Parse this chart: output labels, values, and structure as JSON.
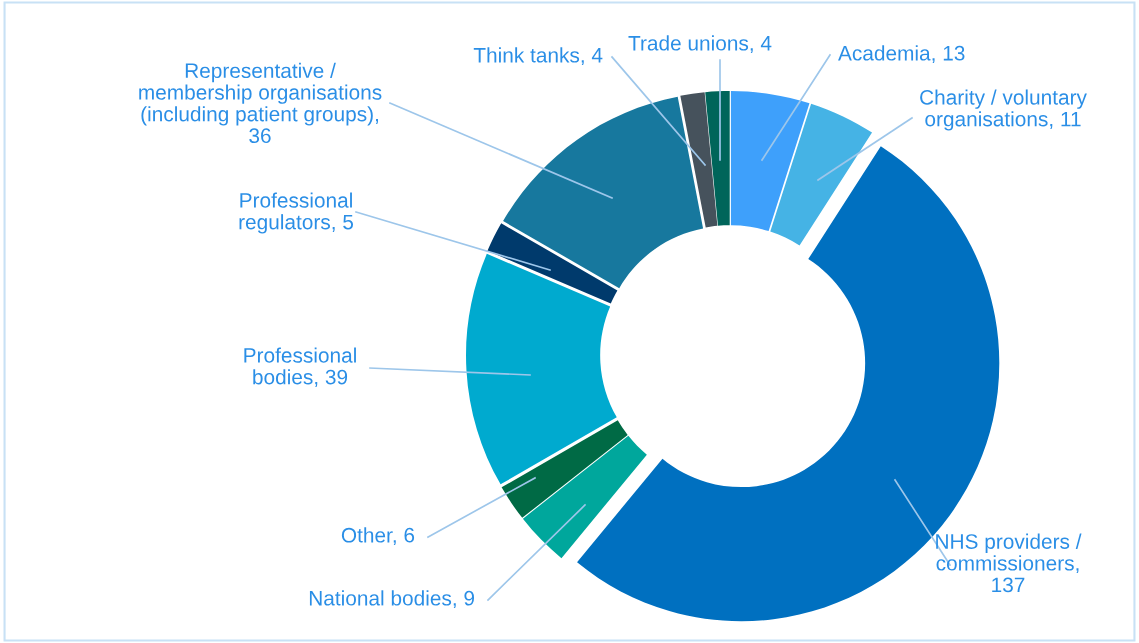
{
  "chart_data": {
    "type": "donut",
    "categories": [
      "Academia, 13",
      "Charity / voluntary\norganisations, 11",
      "NHS providers /\ncommissioners,\n137",
      "National bodies, 9",
      "Other, 6",
      "Professional\nbodies, 39",
      "Professional\nregulators, 5",
      "Representative /\nmembership organisations\n(including patient groups),\n36",
      "Think tanks, 4",
      "Trade unions, 4"
    ],
    "values": [
      13,
      11,
      137,
      9,
      6,
      39,
      5,
      36,
      4,
      4
    ],
    "colors": [
      "#3ea0fb",
      "#45b3e5",
      "#0070c0",
      "#00a79c",
      "#006a45",
      "#00aacf",
      "#003a6c",
      "#17789e",
      "#46525c",
      "#00655a"
    ],
    "legend": false
  }
}
